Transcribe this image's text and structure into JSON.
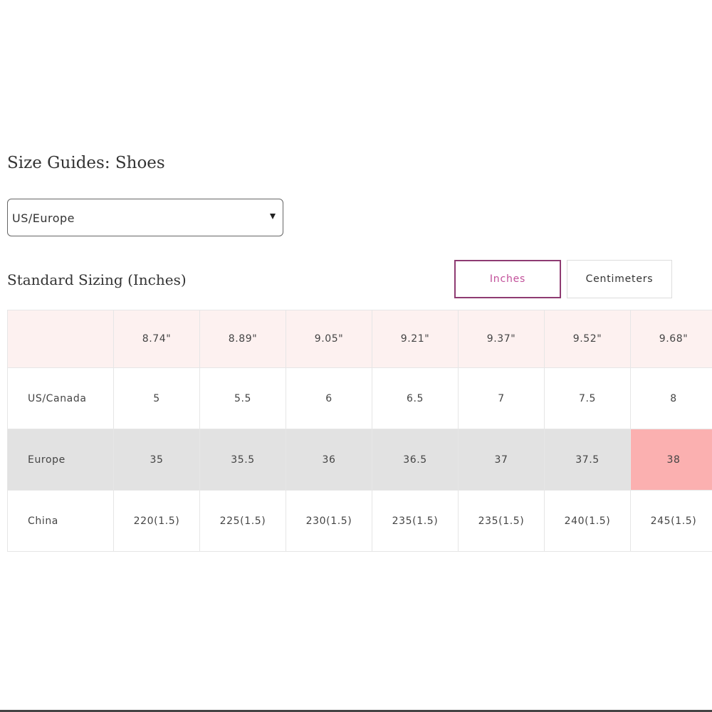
{
  "header": {
    "title": "Size Guides: Shoes"
  },
  "select": {
    "value": "US/Europe"
  },
  "section": {
    "title": "Standard Sizing (Inches)"
  },
  "tabs": [
    "Inches",
    "Centimeters"
  ],
  "table": {
    "header": [
      "8.74\"",
      "8.89\"",
      "9.05\"",
      "9.21\"",
      "9.37\"",
      "9.52\"",
      "9.68\""
    ],
    "rows": [
      [
        "US/Canada",
        "5",
        "5.5",
        "6",
        "6.5",
        "7",
        "7.5",
        "8"
      ],
      [
        "Europe",
        "35",
        "35.5",
        "36",
        "36.5",
        "37",
        "37.5",
        "38"
      ],
      [
        "China",
        "220(1.5)",
        "225(1.5)",
        "230(1.5)",
        "235(1.5)",
        "235(1.5)",
        "240(1.5)",
        "245(1.5)"
      ]
    ]
  }
}
